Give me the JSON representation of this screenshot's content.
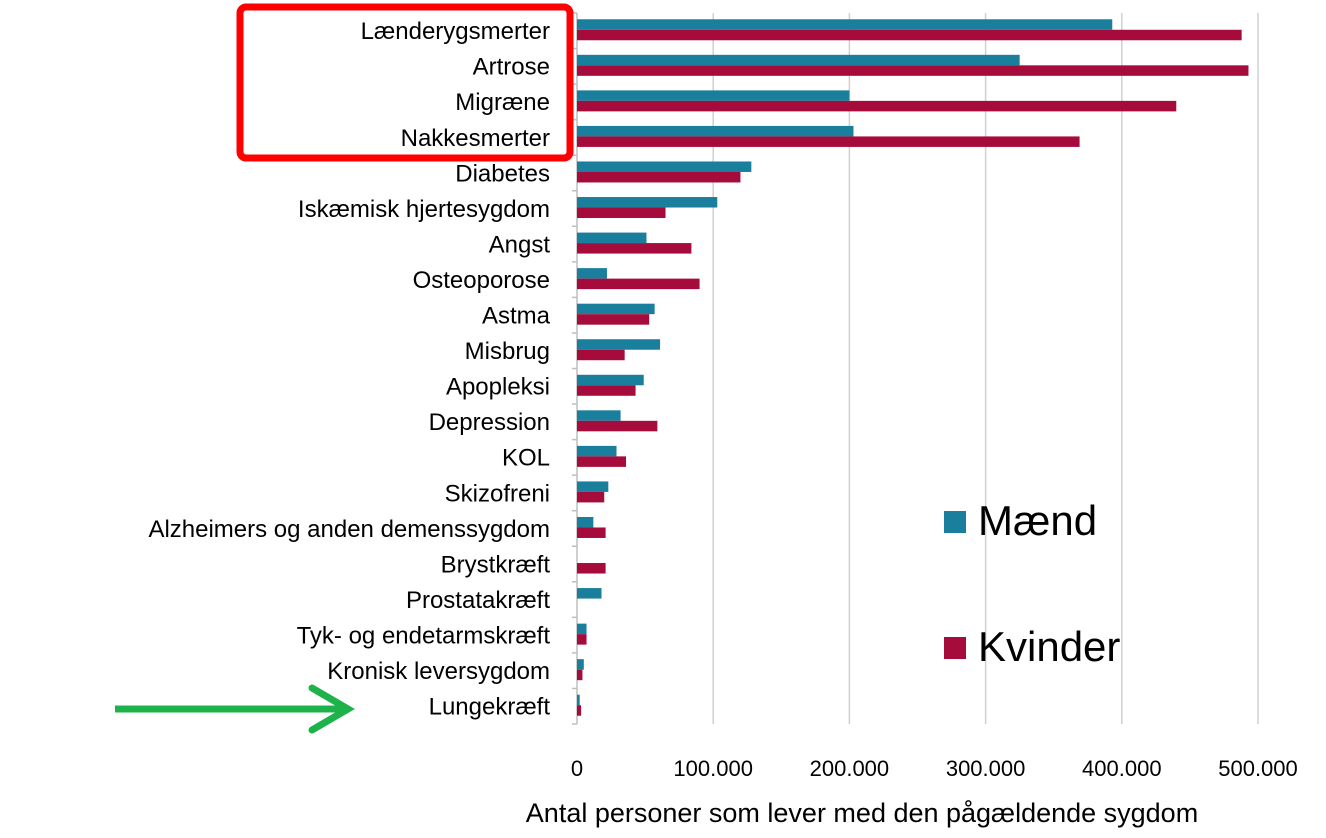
{
  "chart_data": {
    "type": "barh",
    "xlabel": "Antal personer som lever med  den pågældende sygdom",
    "categories": [
      "Lænderygsmerter",
      "Artrose",
      "Migræne",
      "Nakkesmerter",
      "Diabetes",
      "Iskæmisk hjertesygdom",
      "Angst",
      "Osteoporose",
      "Astma",
      "Misbrug",
      "Apopleksi",
      "Depression",
      "KOL",
      "Skizofreni",
      "Alzheimers og anden demenssygdom",
      "Brystkræft",
      "Prostatakræft",
      "Tyk- og endetarmskræft",
      "Kronisk leversygdom",
      "Lungekræft"
    ],
    "series": [
      {
        "name": "Mænd",
        "color": "#1a7f9c",
        "values": [
          393000,
          325000,
          200000,
          203000,
          128000,
          103000,
          51000,
          22000,
          57000,
          61000,
          49000,
          32000,
          29000,
          23000,
          12000,
          0,
          18000,
          7000,
          5000,
          2000
        ]
      },
      {
        "name": "Kvinder",
        "color": "#a50c3c",
        "values": [
          488000,
          493000,
          440000,
          369000,
          120000,
          65000,
          84000,
          90000,
          53000,
          35000,
          43000,
          59000,
          36000,
          20000,
          21000,
          21000,
          0,
          7000,
          4000,
          3000
        ]
      }
    ],
    "xlim": [
      0,
      500000
    ],
    "xticks": [
      0,
      {
        "value": 100000,
        "label": "100.000"
      },
      {
        "value": 200000,
        "label": "200.000"
      },
      {
        "value": 300000,
        "label": "300.000"
      },
      {
        "value": 400000,
        "label": "400.000"
      },
      {
        "value": 500000,
        "label": "500.000"
      }
    ],
    "grid": true,
    "legend": "lower right"
  }
}
